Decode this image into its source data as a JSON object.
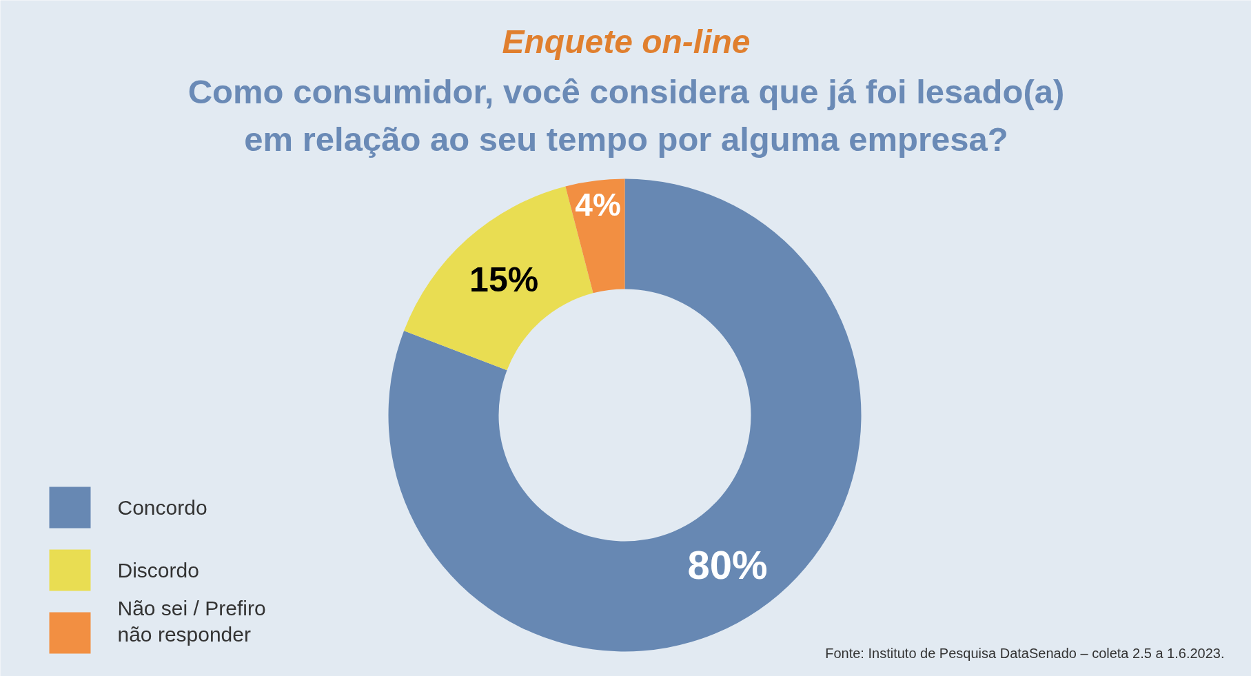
{
  "chart_data": {
    "type": "donut",
    "title": "Enquete on-line",
    "subtitle": "Como consumidor, você considera que já foi lesado(a) em relação ao seu tempo por alguma empresa?",
    "categories": [
      "Concordo",
      "Discordo",
      "Não sei / Prefiro não responder"
    ],
    "values": [
      80,
      15,
      4
    ],
    "colors": [
      "#6788b3",
      "#e9dd52",
      "#f28f42"
    ],
    "value_labels": [
      "80%",
      "15%",
      "4%"
    ],
    "legend": "bottom left",
    "annotations": [
      "Fonte: Instituto de Pesquisa DataSenado – coleta 2.5 a 1.6.2023."
    ]
  }
}
